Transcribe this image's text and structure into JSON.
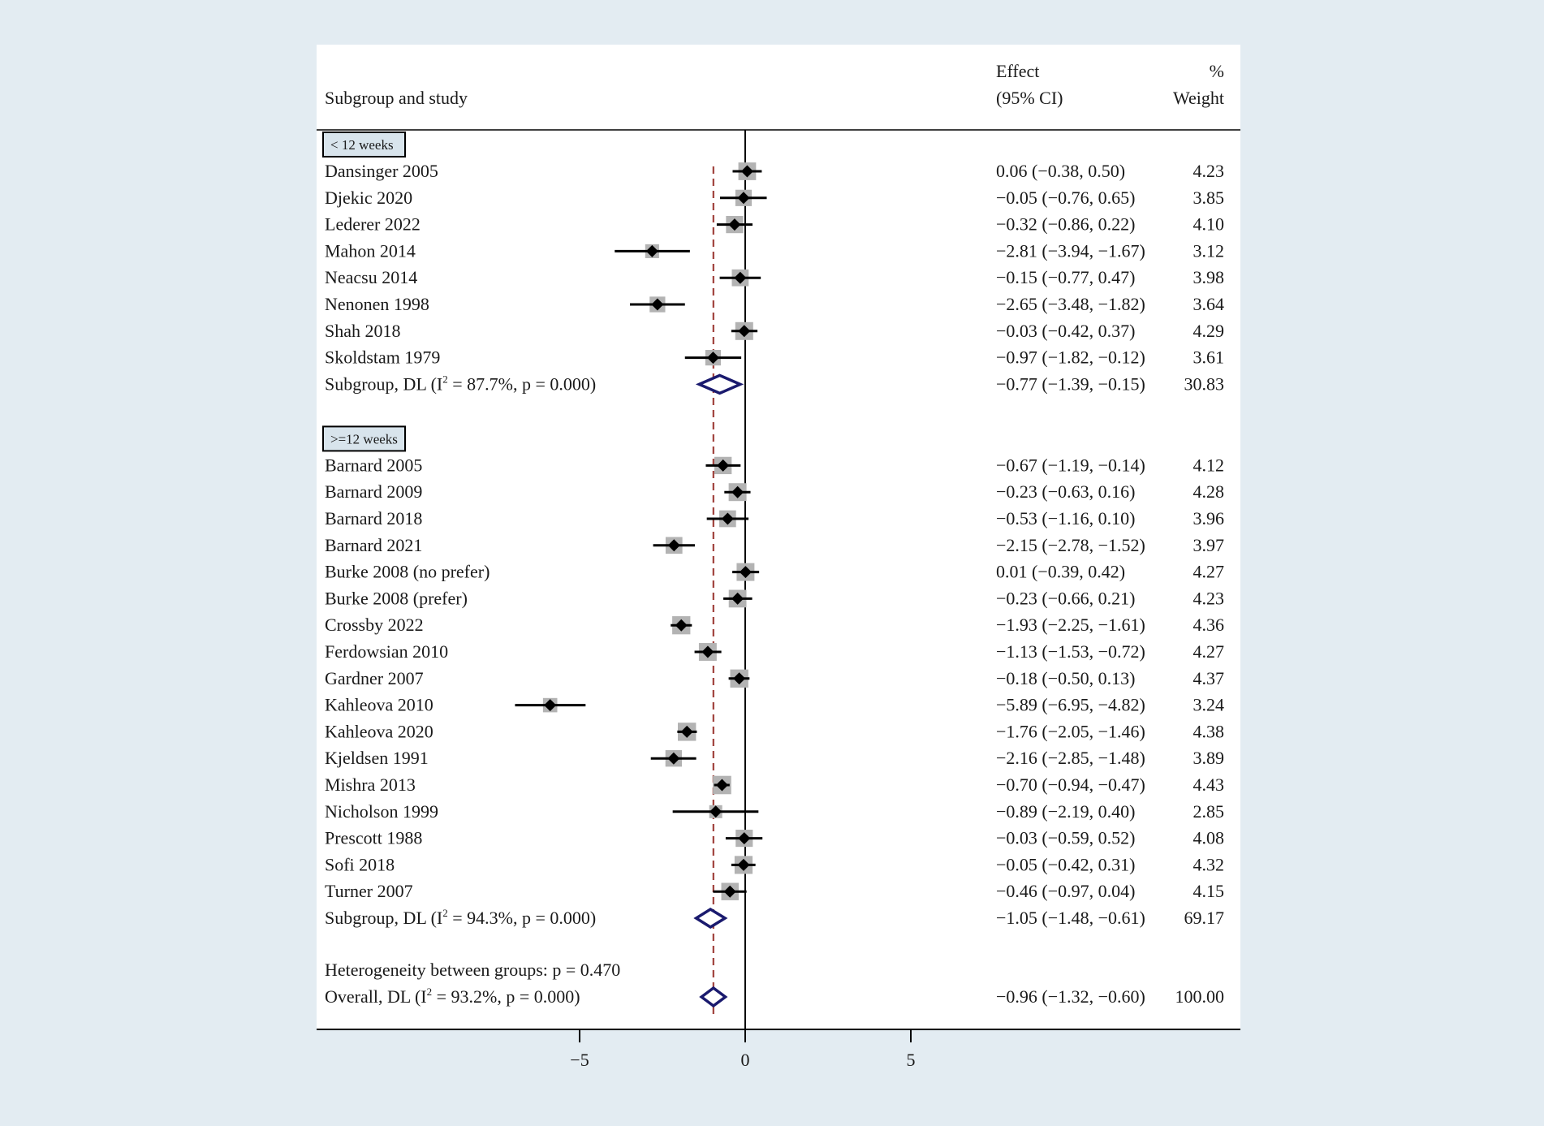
{
  "chart_data": {
    "type": "forest",
    "header": {
      "study": "Subgroup and study",
      "effect_line1": "Effect",
      "effect_line2": "(95% CI)",
      "weight_line1": "%",
      "weight_line2": "Weight"
    },
    "x_axis": {
      "min": -10,
      "max": 10,
      "ticks": [
        {
          "value": -5,
          "label": "−5"
        },
        {
          "value": 0,
          "label": "0"
        },
        {
          "value": 5,
          "label": "5"
        }
      ],
      "reference_line": 0,
      "overall_line": -0.96
    },
    "subgroups": [
      {
        "label": "< 12 weeks",
        "studies": [
          {
            "name": "Dansinger 2005",
            "effect": 0.06,
            "lo": -0.38,
            "hi": 0.5,
            "ci_text": "0.06 (−0.38, 0.50)",
            "weight": 4.23,
            "weight_text": "4.23"
          },
          {
            "name": "Djekic 2020",
            "effect": -0.05,
            "lo": -0.76,
            "hi": 0.65,
            "ci_text": "−0.05 (−0.76, 0.65)",
            "weight": 3.85,
            "weight_text": "3.85"
          },
          {
            "name": "Lederer 2022",
            "effect": -0.32,
            "lo": -0.86,
            "hi": 0.22,
            "ci_text": "−0.32 (−0.86, 0.22)",
            "weight": 4.1,
            "weight_text": "4.10"
          },
          {
            "name": "Mahon 2014",
            "effect": -2.81,
            "lo": -3.94,
            "hi": -1.67,
            "ci_text": "−2.81 (−3.94, −1.67)",
            "weight": 3.12,
            "weight_text": "3.12"
          },
          {
            "name": "Neacsu 2014",
            "effect": -0.15,
            "lo": -0.77,
            "hi": 0.47,
            "ci_text": "−0.15 (−0.77, 0.47)",
            "weight": 3.98,
            "weight_text": "3.98"
          },
          {
            "name": "Nenonen 1998",
            "effect": -2.65,
            "lo": -3.48,
            "hi": -1.82,
            "ci_text": "−2.65 (−3.48, −1.82)",
            "weight": 3.64,
            "weight_text": "3.64"
          },
          {
            "name": "Shah 2018",
            "effect": -0.03,
            "lo": -0.42,
            "hi": 0.37,
            "ci_text": "−0.03 (−0.42, 0.37)",
            "weight": 4.29,
            "weight_text": "4.29"
          },
          {
            "name": "Skoldstam 1979",
            "effect": -0.97,
            "lo": -1.82,
            "hi": -0.12,
            "ci_text": "−0.97 (−1.82, −0.12)",
            "weight": 3.61,
            "weight_text": "3.61"
          }
        ],
        "summary": {
          "label_pre": "Subgroup, DL (I",
          "label_sup": "2",
          "label_post": " = 87.7%, p = 0.000)",
          "effect": -0.77,
          "lo": -1.39,
          "hi": -0.15,
          "ci_text": "−0.77 (−1.39, −0.15)",
          "weight_text": "30.83"
        }
      },
      {
        "label": ">=12 weeks",
        "studies": [
          {
            "name": "Barnard 2005",
            "effect": -0.67,
            "lo": -1.19,
            "hi": -0.14,
            "ci_text": "−0.67 (−1.19, −0.14)",
            "weight": 4.12,
            "weight_text": "4.12"
          },
          {
            "name": "Barnard 2009",
            "effect": -0.23,
            "lo": -0.63,
            "hi": 0.16,
            "ci_text": "−0.23 (−0.63, 0.16)",
            "weight": 4.28,
            "weight_text": "4.28"
          },
          {
            "name": "Barnard 2018",
            "effect": -0.53,
            "lo": -1.16,
            "hi": 0.1,
            "ci_text": "−0.53 (−1.16, 0.10)",
            "weight": 3.96,
            "weight_text": "3.96"
          },
          {
            "name": "Barnard 2021",
            "effect": -2.15,
            "lo": -2.78,
            "hi": -1.52,
            "ci_text": "−2.15 (−2.78, −1.52)",
            "weight": 3.97,
            "weight_text": "3.97"
          },
          {
            "name": "Burke 2008 (no prefer)",
            "effect": 0.01,
            "lo": -0.39,
            "hi": 0.42,
            "ci_text": "0.01 (−0.39, 0.42)",
            "weight": 4.27,
            "weight_text": "4.27"
          },
          {
            "name": "Burke 2008 (prefer)",
            "effect": -0.23,
            "lo": -0.66,
            "hi": 0.21,
            "ci_text": "−0.23 (−0.66, 0.21)",
            "weight": 4.23,
            "weight_text": "4.23"
          },
          {
            "name": "Crossby 2022",
            "effect": -1.93,
            "lo": -2.25,
            "hi": -1.61,
            "ci_text": "−1.93 (−2.25, −1.61)",
            "weight": 4.36,
            "weight_text": "4.36"
          },
          {
            "name": "Ferdowsian 2010",
            "effect": -1.13,
            "lo": -1.53,
            "hi": -0.72,
            "ci_text": "−1.13 (−1.53, −0.72)",
            "weight": 4.27,
            "weight_text": "4.27"
          },
          {
            "name": "Gardner 2007",
            "effect": -0.18,
            "lo": -0.5,
            "hi": 0.13,
            "ci_text": "−0.18 (−0.50, 0.13)",
            "weight": 4.37,
            "weight_text": "4.37"
          },
          {
            "name": "Kahleova 2010",
            "effect": -5.89,
            "lo": -6.95,
            "hi": -4.82,
            "ci_text": "−5.89 (−6.95, −4.82)",
            "weight": 3.24,
            "weight_text": "3.24"
          },
          {
            "name": "Kahleova 2020",
            "effect": -1.76,
            "lo": -2.05,
            "hi": -1.46,
            "ci_text": "−1.76 (−2.05, −1.46)",
            "weight": 4.38,
            "weight_text": "4.38"
          },
          {
            "name": "Kjeldsen 1991",
            "effect": -2.16,
            "lo": -2.85,
            "hi": -1.48,
            "ci_text": "−2.16 (−2.85, −1.48)",
            "weight": 3.89,
            "weight_text": "3.89"
          },
          {
            "name": "Mishra 2013",
            "effect": -0.7,
            "lo": -0.94,
            "hi": -0.47,
            "ci_text": "−0.70 (−0.94, −0.47)",
            "weight": 4.43,
            "weight_text": "4.43"
          },
          {
            "name": "Nicholson 1999",
            "effect": -0.89,
            "lo": -2.19,
            "hi": 0.4,
            "ci_text": "−0.89 (−2.19, 0.40)",
            "weight": 2.85,
            "weight_text": "2.85"
          },
          {
            "name": "Prescott 1988",
            "effect": -0.03,
            "lo": -0.59,
            "hi": 0.52,
            "ci_text": "−0.03 (−0.59, 0.52)",
            "weight": 4.08,
            "weight_text": "4.08"
          },
          {
            "name": "Sofi 2018",
            "effect": -0.05,
            "lo": -0.42,
            "hi": 0.31,
            "ci_text": "−0.05 (−0.42, 0.31)",
            "weight": 4.32,
            "weight_text": "4.32"
          },
          {
            "name": "Turner 2007",
            "effect": -0.46,
            "lo": -0.97,
            "hi": 0.04,
            "ci_text": "−0.46 (−0.97, 0.04)",
            "weight": 4.15,
            "weight_text": "4.15"
          }
        ],
        "summary": {
          "label_pre": "Subgroup, DL (I",
          "label_sup": "2",
          "label_post": " = 94.3%, p = 0.000)",
          "effect": -1.05,
          "lo": -1.48,
          "hi": -0.61,
          "ci_text": "−1.05 (−1.48, −0.61)",
          "weight_text": "69.17"
        }
      }
    ],
    "heterogeneity_text": "Heterogeneity between groups: p = 0.470",
    "overall": {
      "label_pre": "Overall, DL (I",
      "label_sup": "2",
      "label_post": " = 93.2%, p = 0.000)",
      "effect": -0.96,
      "lo": -1.32,
      "hi": -0.6,
      "ci_text": "−0.96 (−1.32, −0.60)",
      "weight_text": "100.00"
    }
  },
  "colors": {
    "background": "#e3ecf2",
    "plot_background": "#ffffff",
    "marker": "#000000",
    "weight_box": "#b3b3b3",
    "diamond": "#1a1a6e",
    "overall_line": "#a0413c",
    "subgroup_box_fill": "#d8e4ec"
  }
}
